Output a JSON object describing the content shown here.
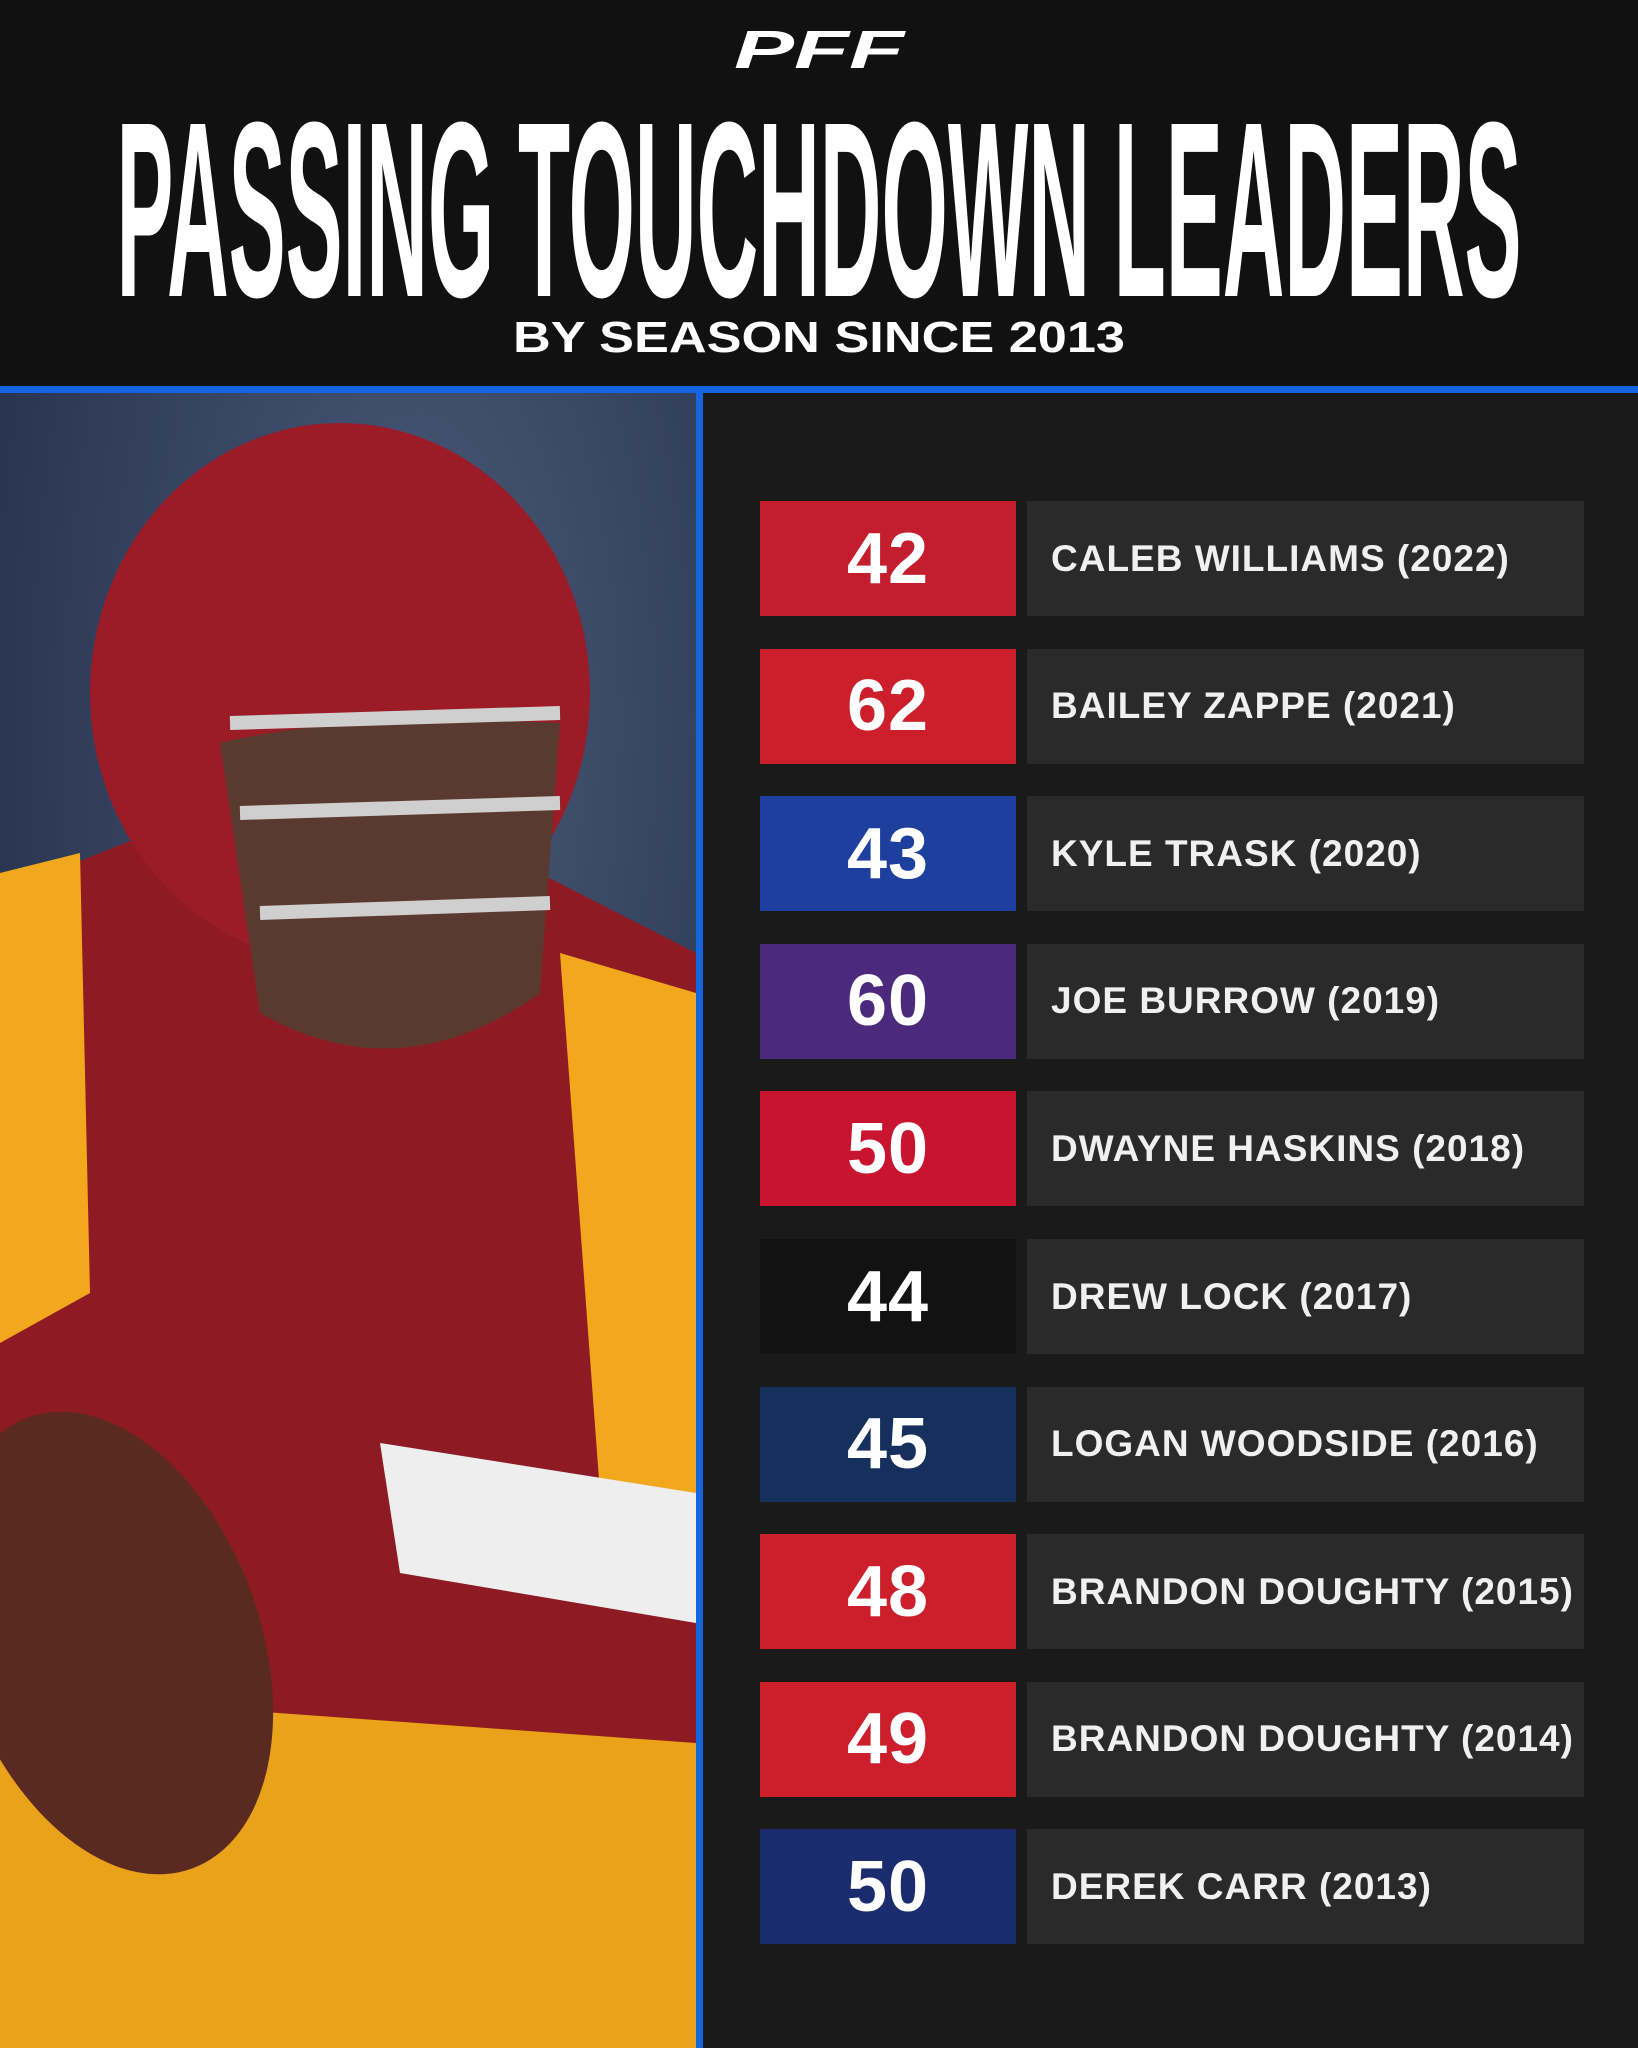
{
  "header": {
    "logo": "PFF",
    "title": "PASSING TOUCHDOWN LEADERS",
    "subtitle": "BY SEASON SINCE 2013"
  },
  "leaders": [
    {
      "value": 42,
      "name": "CALEB WILLIAMS (2022)",
      "color": "#c41e2e"
    },
    {
      "value": 62,
      "name": "BAILEY ZAPPE (2021)",
      "color": "#cc1f2b"
    },
    {
      "value": 43,
      "name": "KYLE TRASK (2020)",
      "color": "#1d3f9e"
    },
    {
      "value": 60,
      "name": "JOE BURROW (2019)",
      "color": "#4b2a7d"
    },
    {
      "value": 50,
      "name": "DWAYNE HASKINS (2018)",
      "color": "#c8142f"
    },
    {
      "value": 44,
      "name": "DREW LOCK (2017)",
      "color": "#121212"
    },
    {
      "value": 45,
      "name": "LOGAN WOODSIDE (2016)",
      "color": "#15305c"
    },
    {
      "value": 48,
      "name": "BRANDON DOUGHTY (2015)",
      "color": "#cc1f2b"
    },
    {
      "value": 49,
      "name": "BRANDON DOUGHTY (2014)",
      "color": "#cc1f2b"
    },
    {
      "value": 50,
      "name": "DEREK CARR (2013)",
      "color": "#1a2b6e"
    }
  ]
}
